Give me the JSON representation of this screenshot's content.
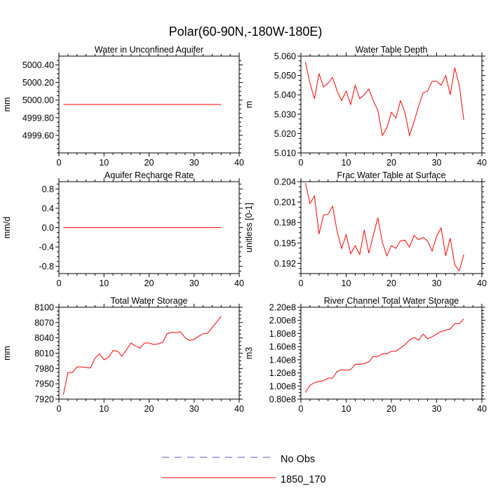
{
  "page_title": "Polar(60-90N,-180W-180E)",
  "legend": [
    {
      "label": "No Obs",
      "color": "#5555cc",
      "dashed": true
    },
    {
      "label": "1850_170",
      "color": "#ff0000",
      "dashed": false
    }
  ],
  "chart_data": [
    {
      "type": "line",
      "title": "Water in Unconfined Aquifer",
      "ylabel": "mm",
      "xlim": [
        0,
        40
      ],
      "ylim": [
        4999.4,
        5000.5
      ],
      "xticks": [
        0,
        10,
        20,
        30,
        40
      ],
      "yticks": [
        4999.6,
        4999.8,
        5000.0,
        5000.2,
        5000.4
      ],
      "ytick_labels": [
        "4999.60",
        "4999.80",
        "5000.00",
        "5000.20",
        "5000.40"
      ],
      "series": [
        {
          "name": "1850_170",
          "color": "#ff0000",
          "x": [
            1,
            2,
            3,
            4,
            5,
            6,
            7,
            8,
            9,
            10,
            11,
            12,
            13,
            14,
            15,
            16,
            17,
            18,
            19,
            20,
            21,
            22,
            23,
            24,
            25,
            26,
            27,
            28,
            29,
            30,
            31,
            32,
            33,
            34,
            35,
            36
          ],
          "y": [
            4999.95,
            4999.95,
            4999.95,
            4999.95,
            4999.95,
            4999.95,
            4999.95,
            4999.95,
            4999.95,
            4999.95,
            4999.95,
            4999.95,
            4999.95,
            4999.95,
            4999.95,
            4999.95,
            4999.95,
            4999.95,
            4999.95,
            4999.95,
            4999.95,
            4999.95,
            4999.95,
            4999.95,
            4999.95,
            4999.95,
            4999.95,
            4999.95,
            4999.95,
            4999.95,
            4999.95,
            4999.95,
            4999.95,
            4999.95,
            4999.95,
            4999.95
          ]
        }
      ]
    },
    {
      "type": "line",
      "title": "Water Table Depth",
      "ylabel": "m",
      "xlim": [
        0,
        40
      ],
      "ylim": [
        5.01,
        5.06
      ],
      "xticks": [
        0,
        10,
        20,
        30,
        40
      ],
      "yticks": [
        5.01,
        5.02,
        5.03,
        5.04,
        5.05,
        5.06
      ],
      "ytick_labels": [
        "5.010",
        "5.020",
        "5.030",
        "5.040",
        "5.050",
        "5.060"
      ],
      "series": [
        {
          "name": "1850_170",
          "color": "#ff0000",
          "x": [
            1,
            2,
            3,
            4,
            5,
            6,
            7,
            8,
            9,
            10,
            11,
            12,
            13,
            14,
            15,
            16,
            17,
            18,
            19,
            20,
            21,
            22,
            23,
            24,
            25,
            26,
            27,
            28,
            29,
            30,
            31,
            32,
            33,
            34,
            35,
            36
          ],
          "y": [
            5.057,
            5.046,
            5.038,
            5.051,
            5.044,
            5.046,
            5.049,
            5.042,
            5.037,
            5.042,
            5.035,
            5.045,
            5.038,
            5.04,
            5.043,
            5.037,
            5.032,
            5.019,
            5.023,
            5.031,
            5.028,
            5.037,
            5.031,
            5.019,
            5.026,
            5.034,
            5.041,
            5.042,
            5.047,
            5.047,
            5.045,
            5.05,
            5.04,
            5.054,
            5.045,
            5.027
          ]
        }
      ]
    },
    {
      "type": "line",
      "title": "Aquifer Recharge Rate",
      "ylabel": "mm/d",
      "xlim": [
        0,
        40
      ],
      "ylim": [
        -0.95,
        0.95
      ],
      "xticks": [
        0,
        10,
        20,
        30,
        40
      ],
      "yticks": [
        -0.8,
        -0.4,
        0.0,
        0.4,
        0.8
      ],
      "ytick_labels": [
        "-0.8",
        "-0.4",
        "0.0",
        "0.4",
        "0.8"
      ],
      "series": [
        {
          "name": "1850_170",
          "color": "#ff0000",
          "x": [
            1,
            2,
            3,
            4,
            5,
            6,
            7,
            8,
            9,
            10,
            11,
            12,
            13,
            14,
            15,
            16,
            17,
            18,
            19,
            20,
            21,
            22,
            23,
            24,
            25,
            26,
            27,
            28,
            29,
            30,
            31,
            32,
            33,
            34,
            35,
            36
          ],
          "y": [
            0,
            0,
            0,
            0,
            0,
            0,
            0,
            0,
            0,
            0,
            0,
            0,
            0,
            0,
            0,
            0,
            0,
            0,
            0,
            0,
            0,
            0,
            0,
            0,
            0,
            0,
            0,
            0,
            0,
            0,
            0,
            0,
            0,
            0,
            0,
            0
          ]
        }
      ]
    },
    {
      "type": "line",
      "title": "Frac Water Table at Surface",
      "ylabel": "unitless [0-1]",
      "xlim": [
        0,
        40
      ],
      "ylim": [
        0.1905,
        0.204
      ],
      "xticks": [
        0,
        10,
        20,
        30,
        40
      ],
      "yticks": [
        0.192,
        0.195,
        0.198,
        0.201,
        0.204
      ],
      "ytick_labels": [
        "0.192",
        "0.195",
        "0.198",
        "0.201",
        "0.204"
      ],
      "series": [
        {
          "name": "1850_170",
          "color": "#ff0000",
          "x": [
            1,
            2,
            3,
            4,
            5,
            6,
            7,
            8,
            9,
            10,
            11,
            12,
            13,
            14,
            15,
            16,
            17,
            18,
            19,
            20,
            21,
            22,
            23,
            24,
            25,
            26,
            27,
            28,
            29,
            30,
            31,
            32,
            33,
            34,
            35,
            36
          ],
          "y": [
            0.2038,
            0.2008,
            0.2019,
            0.1963,
            0.1991,
            0.1992,
            0.2004,
            0.1967,
            0.1942,
            0.1962,
            0.1934,
            0.1946,
            0.1933,
            0.1969,
            0.1935,
            0.1961,
            0.1987,
            0.1951,
            0.1931,
            0.1946,
            0.1942,
            0.1953,
            0.1954,
            0.1944,
            0.1961,
            0.1955,
            0.1958,
            0.1953,
            0.1938,
            0.196,
            0.1972,
            0.1931,
            0.1957,
            0.1918,
            0.1909,
            0.1933
          ]
        }
      ]
    },
    {
      "type": "line",
      "title": "Total Water Storage",
      "ylabel": "mm",
      "xlim": [
        0,
        40
      ],
      "ylim": [
        7920,
        8100
      ],
      "xticks": [
        0,
        10,
        20,
        30,
        40
      ],
      "yticks": [
        7920,
        7950,
        7980,
        8010,
        8040,
        8070,
        8100
      ],
      "ytick_labels": [
        "7920",
        "7950",
        "7980",
        "8010",
        "8040",
        "8070",
        "8100"
      ],
      "series": [
        {
          "name": "1850_170",
          "color": "#ff0000",
          "x": [
            1,
            2,
            3,
            4,
            5,
            6,
            7,
            8,
            9,
            10,
            11,
            12,
            13,
            14,
            15,
            16,
            17,
            18,
            19,
            20,
            21,
            22,
            23,
            24,
            25,
            26,
            27,
            28,
            29,
            30,
            31,
            32,
            33,
            34,
            35,
            36
          ],
          "y": [
            7929,
            7972,
            7972,
            7983,
            7983,
            7982,
            7981,
            8000,
            8009,
            7997,
            8002,
            8015,
            8014,
            8004,
            8017,
            8030,
            8024,
            8020,
            8030,
            8030,
            8027,
            8028,
            8031,
            8048,
            8051,
            8050,
            8052,
            8040,
            8035,
            8037,
            8043,
            8048,
            8049,
            8060,
            8071,
            8082
          ]
        }
      ]
    },
    {
      "type": "line",
      "title": "River Channel Total Water Storage",
      "ylabel": "m3",
      "xlim": [
        0,
        40
      ],
      "ylim": [
        80000000.0,
        220000000.0
      ],
      "xticks": [
        0,
        10,
        20,
        30,
        40
      ],
      "yticks": [
        80000000.0,
        100000000.0,
        120000000.0,
        140000000.0,
        160000000.0,
        180000000.0,
        200000000.0,
        220000000.0
      ],
      "ytick_labels": [
        "0.80e8",
        "1.00e8",
        "1.20e8",
        "1.40e8",
        "1.60e8",
        "1.80e8",
        "2.00e8",
        "2.20e8"
      ],
      "series": [
        {
          "name": "1850_170",
          "color": "#ff0000",
          "x": [
            1,
            2,
            3,
            4,
            5,
            6,
            7,
            8,
            9,
            10,
            11,
            12,
            13,
            14,
            15,
            16,
            17,
            18,
            19,
            20,
            21,
            22,
            23,
            24,
            25,
            26,
            27,
            28,
            29,
            30,
            31,
            32,
            33,
            34,
            35,
            36
          ],
          "y": [
            90000000.0,
            101000000.0,
            105000000.0,
            107000000.0,
            108000000.0,
            112000000.0,
            112000000.0,
            122000000.0,
            125000000.0,
            124000000.0,
            125000000.0,
            133000000.0,
            133000000.0,
            134000000.0,
            137000000.0,
            145000000.0,
            145000000.0,
            149000000.0,
            149000000.0,
            153000000.0,
            153000000.0,
            158000000.0,
            163000000.0,
            170000000.0,
            174000000.0,
            170000000.0,
            179000000.0,
            172000000.0,
            175000000.0,
            179000000.0,
            183000000.0,
            185000000.0,
            187000000.0,
            195000000.0,
            195000000.0,
            202000000.0
          ]
        }
      ]
    }
  ]
}
